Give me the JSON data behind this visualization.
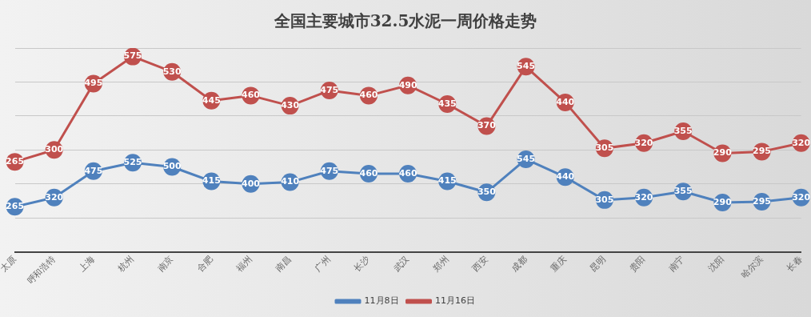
{
  "chart_data": {
    "type": "line",
    "title": "全国主要城市32.5水泥一周价格走势",
    "categories": [
      "太原",
      "呼和浩特",
      "上海",
      "杭州",
      "南京",
      "合肥",
      "福州",
      "南昌",
      "广州",
      "长沙",
      "武汉",
      "郑州",
      "西安",
      "成都",
      "重庆",
      "昆明",
      "贵阳",
      "南宁",
      "沈阳",
      "哈尔滨",
      "长春"
    ],
    "series": [
      {
        "name": "11月8日",
        "color": "#4f81bd",
        "values": [
          265,
          320,
          475,
          525,
          500,
          415,
          400,
          410,
          475,
          460,
          460,
          415,
          350,
          545,
          440,
          305,
          320,
          355,
          290,
          295,
          320
        ]
      },
      {
        "name": "11月16日",
        "color": "#c0504d",
        "axis": "y2",
        "values": [
          265,
          300,
          495,
          575,
          530,
          445,
          460,
          430,
          475,
          460,
          490,
          435,
          370,
          545,
          440,
          305,
          320,
          355,
          290,
          295,
          320
        ]
      }
    ],
    "ylim": [
      0,
      1200
    ],
    "yticks": [
      {
        "value": 0,
        "label": null
      },
      {
        "value": 200,
        "label": null
      },
      {
        "value": 400,
        "label": null
      },
      {
        "value": 600,
        "label": null
      },
      {
        "value": 800,
        "label": null
      },
      {
        "value": 1000,
        "label": null
      },
      {
        "value": 1200,
        "label": null
      }
    ],
    "y2lim": [
      0,
      600
    ],
    "tick_labels": "x",
    "grid": "y",
    "legend": "bottom",
    "marker": "circle",
    "line_style": "solid",
    "data_labels": true
  }
}
